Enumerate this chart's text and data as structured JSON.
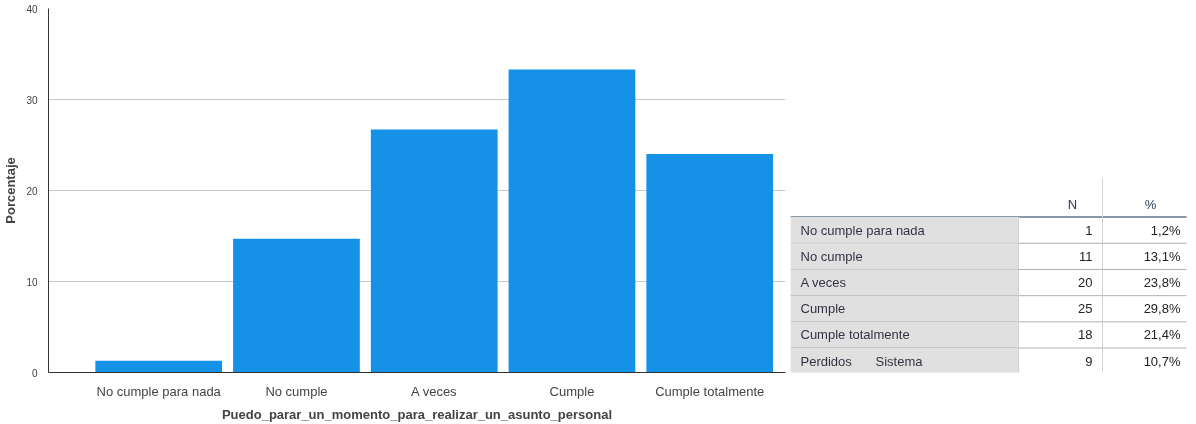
{
  "chart_data": [
    {
      "type": "bar",
      "categories": [
        "No cumple para nada",
        "No cumple",
        "A veces",
        "Cumple",
        "Cumple totalmente"
      ],
      "values": [
        1.3,
        14.7,
        26.7,
        33.3,
        24.0
      ],
      "color": "#1591e8",
      "xlabel": "Puedo_parar_un_momento_para_realizar_un_asunto_personal",
      "ylabel": "Porcentaje",
      "ylim": [
        0,
        40
      ],
      "yticks": [
        0,
        10,
        20,
        30,
        40
      ],
      "grid": "y"
    },
    {
      "type": "other",
      "categories": [
        "N",
        "%"
      ],
      "y_categories": [
        "No cumple para nada",
        "No cumple",
        "A veces",
        "Cumple",
        "Cumple totalmente",
        "Perdidos"
      ],
      "y2_categories": [
        null,
        null,
        null,
        null,
        null,
        "Sistema"
      ],
      "cell_labels": [
        [
          "1",
          "1,2%"
        ],
        [
          "11",
          "13,1%"
        ],
        [
          "20",
          "23,8%"
        ],
        [
          "25",
          "29,8%"
        ],
        [
          "18",
          "21,4%"
        ],
        [
          "9",
          "10,7%"
        ]
      ]
    }
  ]
}
